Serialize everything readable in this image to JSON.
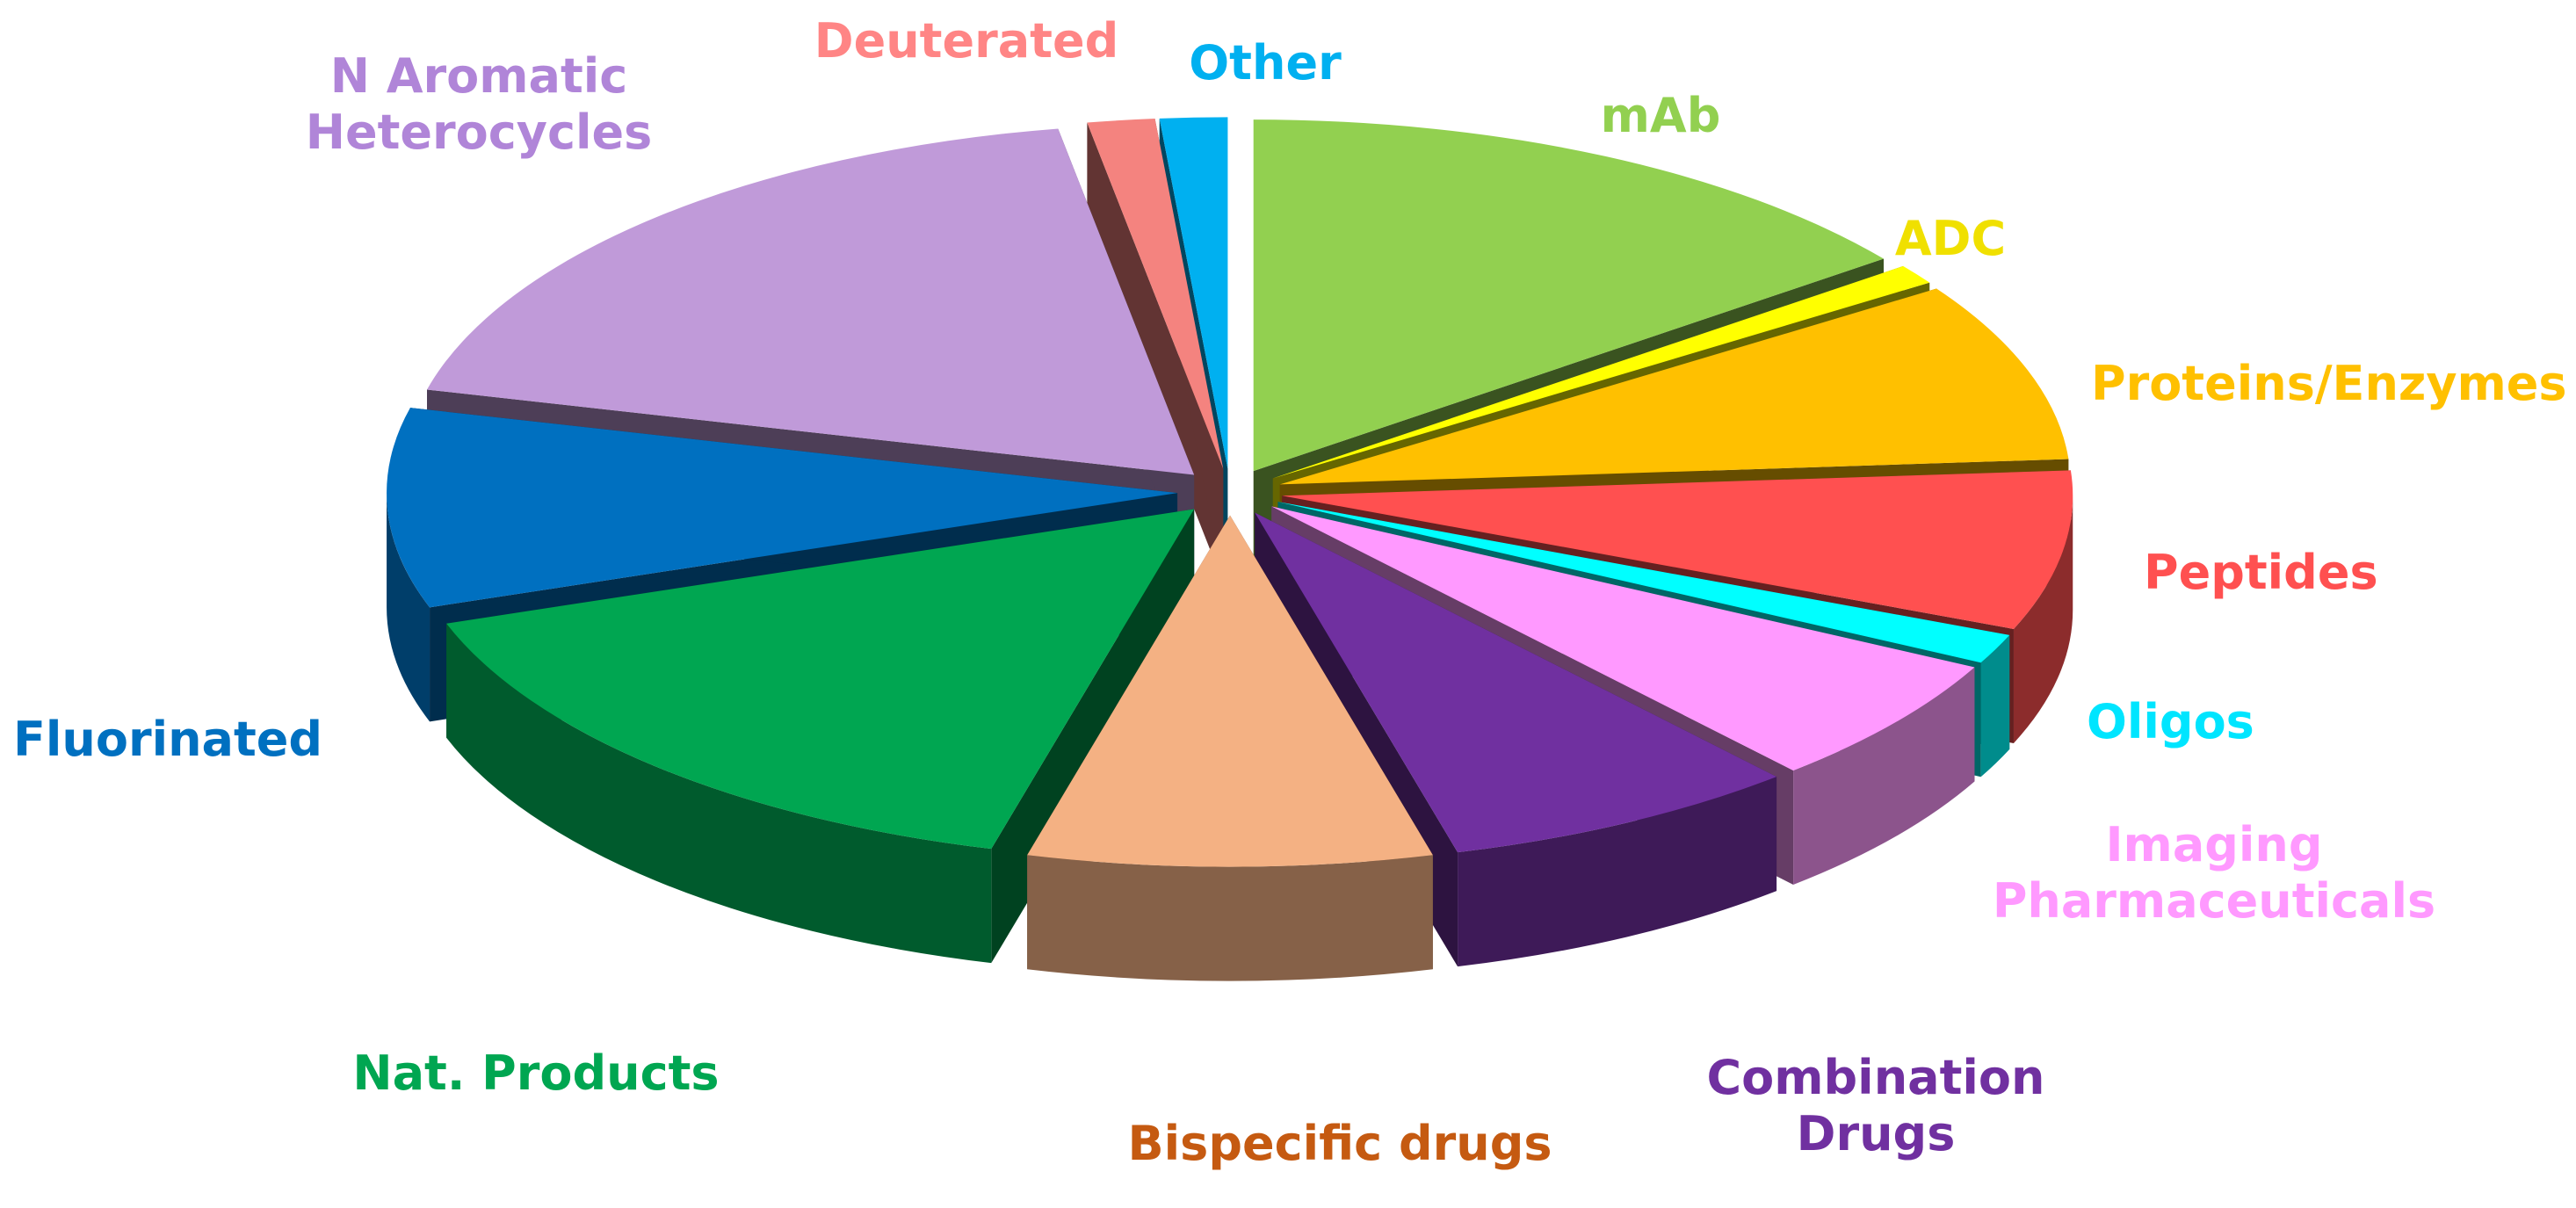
{
  "chart_data": {
    "type": "pie",
    "title": "",
    "exploded": true,
    "style": "3d-perspective",
    "slices": [
      {
        "label": "mAb",
        "value": 16,
        "color": "#92d050",
        "label_color": "#92d050"
      },
      {
        "label": "ADC",
        "value": 1,
        "color": "#ffff00",
        "label_color": "#f0e000"
      },
      {
        "label": "Proteins/Enzymes",
        "value": 9,
        "color": "#ffc000",
        "label_color": "#ffc000"
      },
      {
        "label": "Peptides",
        "value": 8,
        "color": "#ff5050",
        "label_color": "#ff5050"
      },
      {
        "label": "Oligos",
        "value": 1.5,
        "color": "#00ffff",
        "label_color": "#00e5ff"
      },
      {
        "label": "Imaging Pharmaceuticals",
        "label_lines": [
          "Imaging",
          "Pharmaceuticals"
        ],
        "value": 6.5,
        "color": "#ff99ff",
        "label_color": "#ff99ff"
      },
      {
        "label": "Combination Drugs",
        "label_lines": [
          "Combination",
          "Drugs"
        ],
        "value": 8,
        "color": "#7030a0",
        "label_color": "#7030a0"
      },
      {
        "label": "Bispecific drugs",
        "label_lines": [
          "Bispecific  drugs"
        ],
        "value": 9,
        "color": "#f4b183",
        "label_color": "#c55a11"
      },
      {
        "label": "Nat. Products",
        "value": 17,
        "color": "#00a651",
        "label_color": "#00a651"
      },
      {
        "label": "Fluorinated",
        "value": 10,
        "color": "#0070c0",
        "label_color": "#0070c0"
      },
      {
        "label": "N Aromatic Heterocycles",
        "label_lines": [
          "N Aromatic",
          "Heterocycles"
        ],
        "value": 20,
        "color": "#c09ad9",
        "label_color": "#b085d8"
      },
      {
        "label": "Deuterated",
        "value": 1.5,
        "color": "#f4837f",
        "label_color": "#ff8585"
      },
      {
        "label": "Other",
        "value": 1.5,
        "color": "#00b0f0",
        "label_color": "#00b0f0"
      }
    ]
  }
}
